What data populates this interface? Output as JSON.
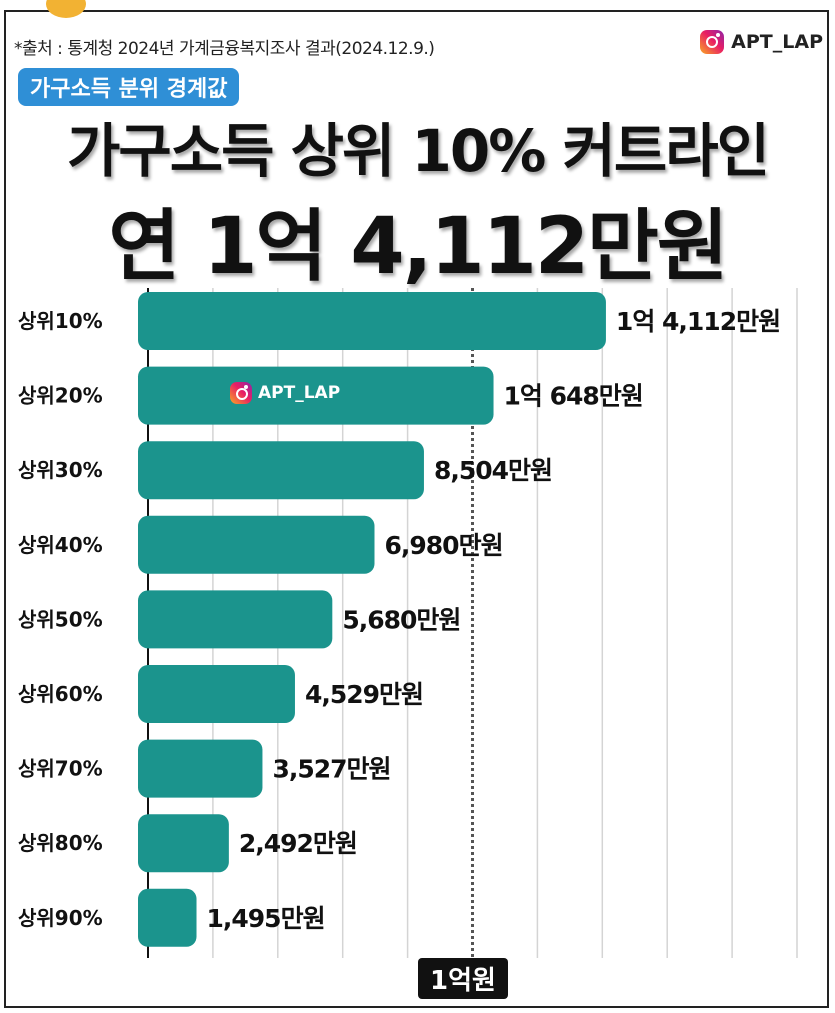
{
  "header": {
    "source": "*출처 : 통계청 2024년 가계금융복지조사 결과(2024.12.9.)",
    "brand": "APT_LAP",
    "badge": "가구소득 분위 경계값",
    "title_line1": "가구소득 상위 10% 커트라인",
    "title_line2": "연  1억 4,112만원"
  },
  "watermark": "APT_LAP",
  "colors": {
    "bar": "#1b948d",
    "badge": "#2f8fd6",
    "marker": "#111111"
  },
  "icons": {
    "brand": "instagram-icon",
    "watermark": "instagram-icon"
  },
  "chart_data": {
    "type": "bar",
    "orientation": "horizontal",
    "unit": "만원",
    "categories": [
      "상위10%",
      "상위20%",
      "상위30%",
      "상위40%",
      "상위50%",
      "상위60%",
      "상위70%",
      "상위80%",
      "상위90%"
    ],
    "values": [
      14112,
      10648,
      8504,
      6980,
      5680,
      4529,
      3527,
      2492,
      1495
    ],
    "value_labels": [
      "1억 4,112만원",
      "1억 648만원",
      "8,504만원",
      "6,980만원",
      "5,680만원",
      "4,529만원",
      "3,527만원",
      "2,492만원",
      "1,495만원"
    ],
    "xlim": [
      0,
      20000
    ],
    "reference_line": {
      "value": 10000,
      "label": "1억원"
    },
    "grid": true
  }
}
